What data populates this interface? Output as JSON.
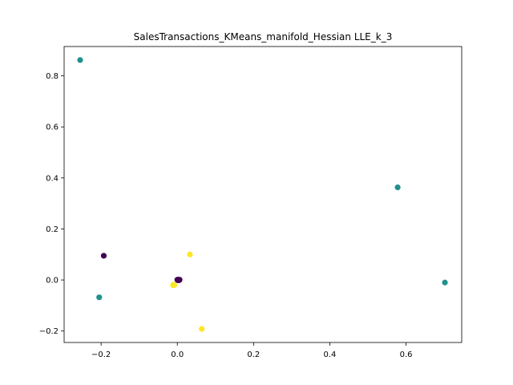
{
  "chart_data": {
    "type": "scatter",
    "title": "SalesTransactions_KMeans_manifold_Hessian LLE_k_3",
    "xlabel": "",
    "ylabel": "",
    "xlim": [
      -0.297,
      0.746
    ],
    "ylim": [
      -0.245,
      0.915
    ],
    "xticks": [
      -0.2,
      0.0,
      0.2,
      0.4,
      0.6
    ],
    "xtick_labels": [
      "−0.2",
      "0.0",
      "0.2",
      "0.4",
      "0.6"
    ],
    "yticks": [
      -0.2,
      0.0,
      0.2,
      0.4,
      0.6,
      0.8
    ],
    "ytick_labels": [
      "−0.2",
      "0.0",
      "0.2",
      "0.4",
      "0.6",
      "0.8"
    ],
    "grid": false,
    "legend": false,
    "series": [
      {
        "color": "#440154",
        "points": [
          {
            "x": -0.193,
            "y": 0.095
          },
          {
            "x": 0.0,
            "y": 0.001
          },
          {
            "x": 0.002,
            "y": 0.001
          },
          {
            "x": 0.004,
            "y": 0.0
          },
          {
            "x": 0.006,
            "y": 0.001
          },
          {
            "x": 0.003,
            "y": -0.001
          },
          {
            "x": 0.005,
            "y": -0.001
          },
          {
            "x": 0.001,
            "y": -0.001
          }
        ]
      },
      {
        "color": "#21918c",
        "points": [
          {
            "x": -0.255,
            "y": 0.862
          },
          {
            "x": -0.205,
            "y": -0.068
          },
          {
            "x": 0.578,
            "y": 0.363
          },
          {
            "x": 0.702,
            "y": -0.01
          }
        ]
      },
      {
        "color": "#fde725",
        "points": [
          {
            "x": 0.033,
            "y": 0.1
          },
          {
            "x": 0.064,
            "y": -0.192
          },
          {
            "x": -0.01,
            "y": -0.018
          },
          {
            "x": -0.008,
            "y": -0.02
          },
          {
            "x": -0.011,
            "y": -0.021
          }
        ]
      }
    ]
  }
}
